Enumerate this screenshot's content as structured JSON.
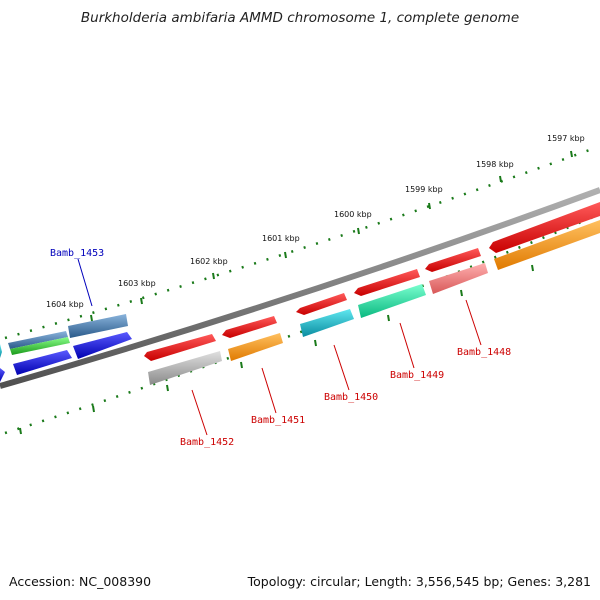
{
  "title": "Burkholderia ambifaria AMMD chromosome 1, complete genome",
  "footer": {
    "accession": "Accession: NC_008390",
    "summary": "Topology: circular; Length: 3,556,545 bp; Genes: 3,281"
  },
  "ticks": [
    "1604 kbp",
    "1603 kbp",
    "1602 kbp",
    "1601 kbp",
    "1600 kbp",
    "1599 kbp",
    "1598 kbp",
    "1597 kbp"
  ],
  "gene_labels": [
    {
      "name": "Bamb_1453",
      "color": "#0000bb"
    },
    {
      "name": "Bamb_1452",
      "color": "#cc0000"
    },
    {
      "name": "Bamb_1451",
      "color": "#cc0000"
    },
    {
      "name": "Bamb_1450",
      "color": "#cc0000"
    },
    {
      "name": "Bamb_1449",
      "color": "#cc0000"
    },
    {
      "name": "Bamb_1448",
      "color": "#cc0000"
    }
  ],
  "colors": {
    "backbone": "#7a7a7a",
    "tick": "#1a7a1a",
    "red": "#ee1111",
    "orange": "#ff9a1a",
    "gray": "#b8b8b8",
    "cyan": "#1ab8c8",
    "mint": "#1ae8a8",
    "pink": "#f07878",
    "blue": "#1010ee",
    "steel": "#4a7eb0",
    "green": "#33cc33",
    "dark_orange": "#d07010"
  }
}
